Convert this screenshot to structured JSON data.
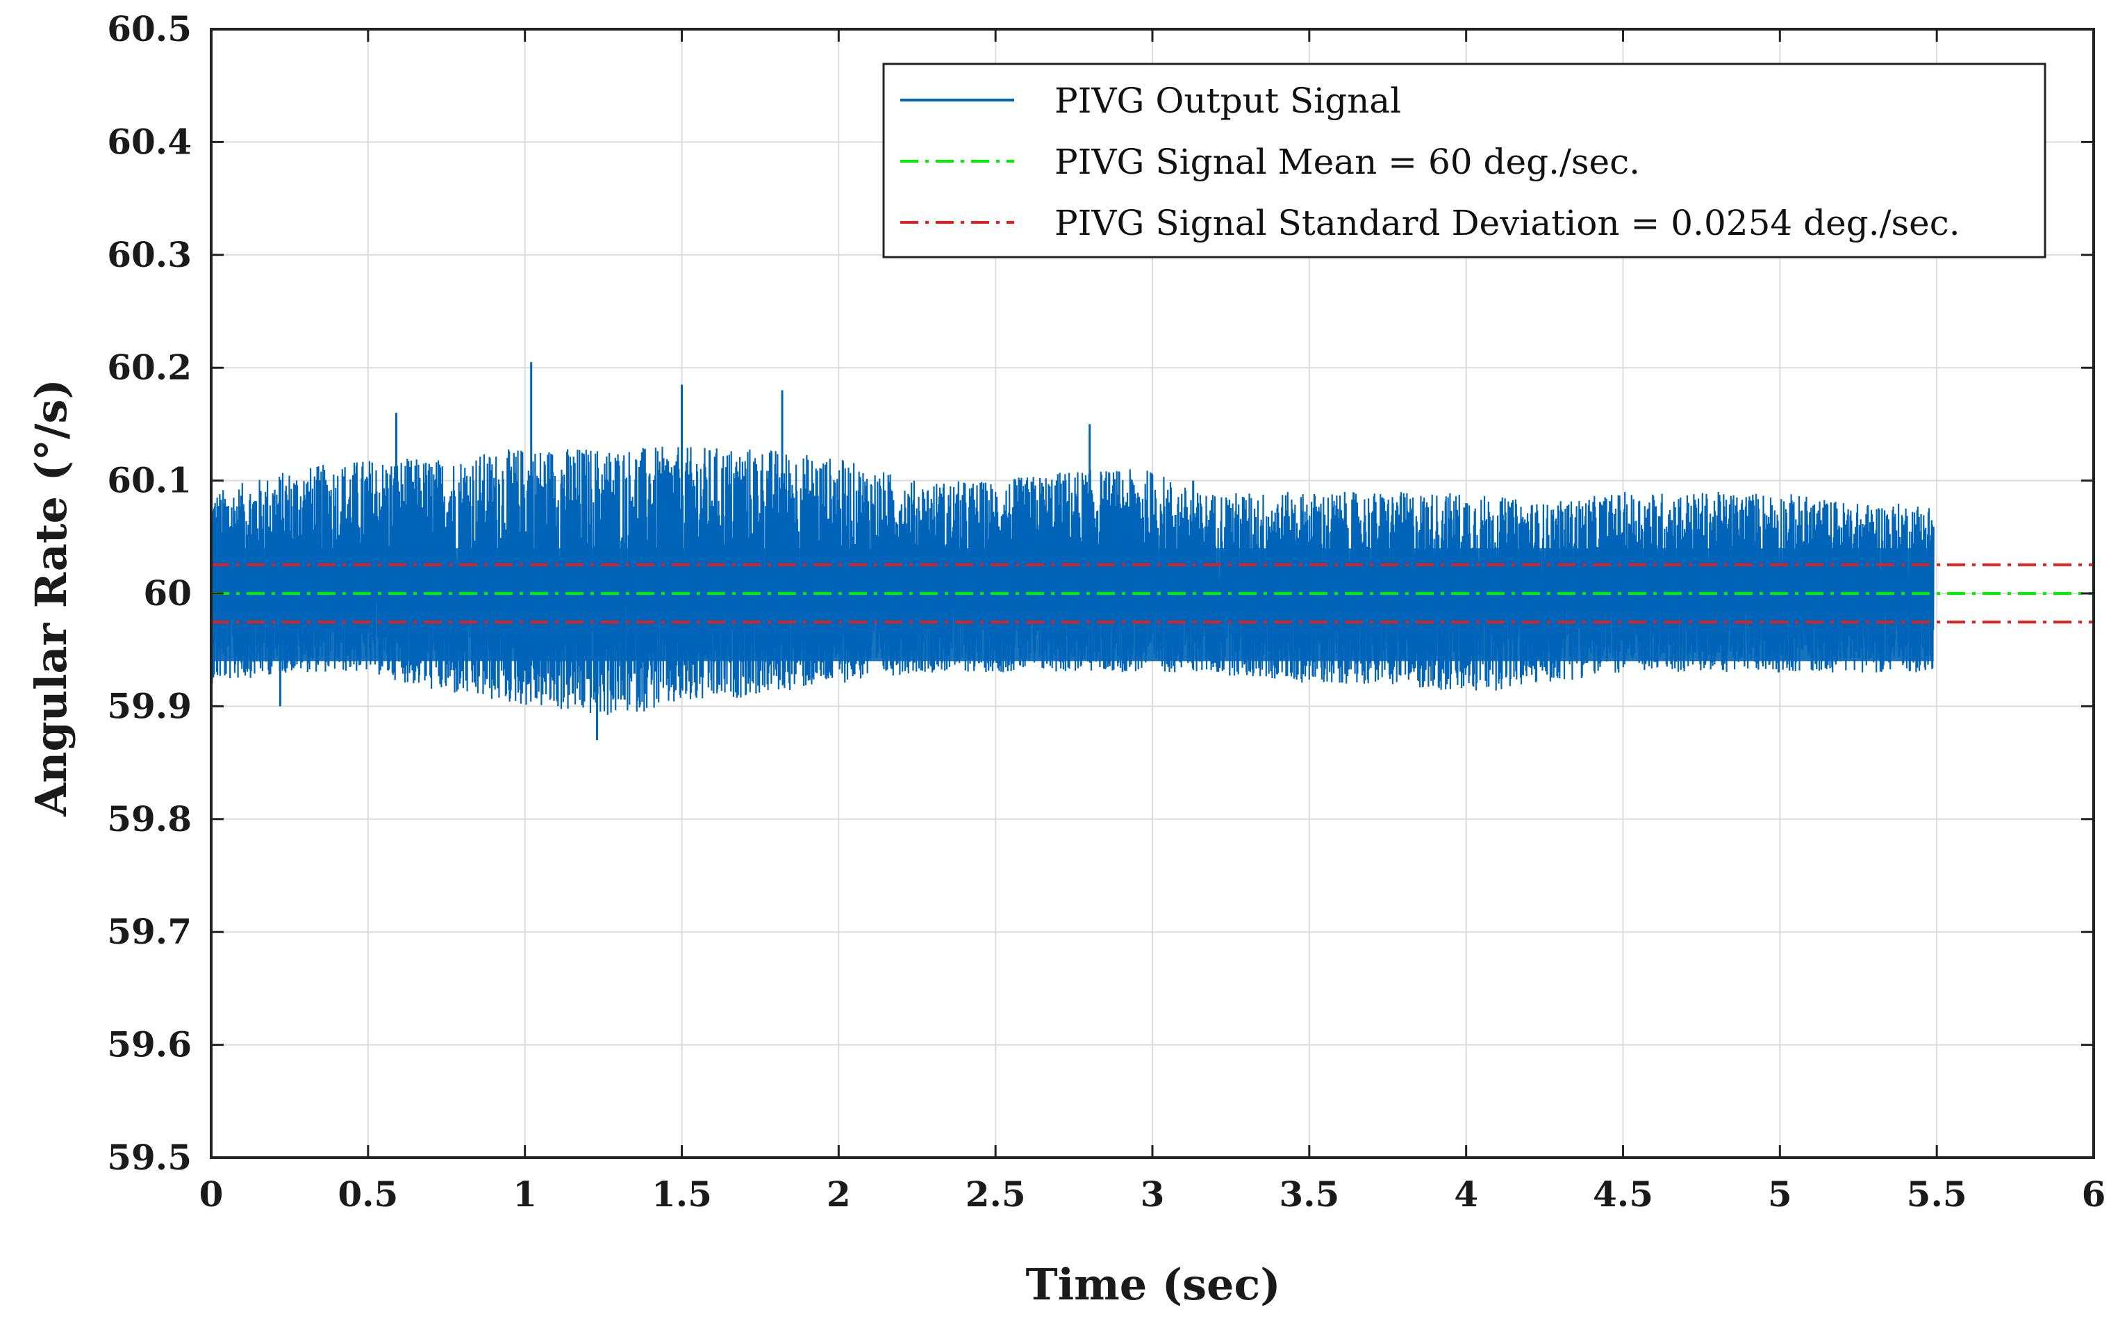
{
  "chart_data": {
    "type": "line",
    "title": "",
    "xlabel": "Time (sec)",
    "ylabel": "Angular Rate (°/s)",
    "xlim": [
      0,
      6
    ],
    "ylim": [
      59.5,
      60.5
    ],
    "x_ticks": [
      0,
      0.5,
      1,
      1.5,
      2,
      2.5,
      3,
      3.5,
      4,
      4.5,
      5,
      5.5,
      6
    ],
    "x_tick_labels": [
      "0",
      "0.5",
      "1",
      "1.5",
      "2",
      "2.5",
      "3",
      "3.5",
      "4",
      "4.5",
      "5",
      "5.5",
      "6"
    ],
    "y_ticks": [
      59.5,
      59.6,
      59.7,
      59.8,
      59.9,
      60,
      60.1,
      60.2,
      60.3,
      60.4,
      60.5
    ],
    "y_tick_labels": [
      "59.5",
      "59.6",
      "59.7",
      "59.8",
      "59.9",
      "60",
      "60.1",
      "60.2",
      "60.3",
      "60.4",
      "60.5"
    ],
    "grid": true,
    "legend_position": "top-right",
    "series": [
      {
        "name": "PIVG Output Signal",
        "style": "solid",
        "color": "#0065b8",
        "x_range": [
          0,
          5.49
        ],
        "mean": 60,
        "std_dev": 0.0254,
        "peak_points": [
          {
            "x": 1.02,
            "y": 60.205
          },
          {
            "x": 1.5,
            "y": 60.185
          },
          {
            "x": 1.82,
            "y": 60.18
          },
          {
            "x": 0.59,
            "y": 60.16
          },
          {
            "x": 2.8,
            "y": 60.15
          },
          {
            "x": 1.23,
            "y": 59.87
          },
          {
            "x": 0.22,
            "y": 59.9
          },
          {
            "x": 3.13,
            "y": 60.1
          }
        ],
        "envelope": [
          {
            "x": 0.0,
            "upper": 60.09,
            "lower": 59.92
          },
          {
            "x": 0.25,
            "upper": 60.11,
            "lower": 59.93
          },
          {
            "x": 0.5,
            "upper": 60.12,
            "lower": 59.93
          },
          {
            "x": 0.75,
            "upper": 60.12,
            "lower": 59.91
          },
          {
            "x": 1.0,
            "upper": 60.13,
            "lower": 59.9
          },
          {
            "x": 1.25,
            "upper": 60.13,
            "lower": 59.89
          },
          {
            "x": 1.5,
            "upper": 60.13,
            "lower": 59.9
          },
          {
            "x": 1.75,
            "upper": 60.13,
            "lower": 59.91
          },
          {
            "x": 2.0,
            "upper": 60.12,
            "lower": 59.92
          },
          {
            "x": 2.25,
            "upper": 60.1,
            "lower": 59.93
          },
          {
            "x": 2.5,
            "upper": 60.1,
            "lower": 59.93
          },
          {
            "x": 2.75,
            "upper": 60.11,
            "lower": 59.93
          },
          {
            "x": 3.0,
            "upper": 60.11,
            "lower": 59.93
          },
          {
            "x": 3.14,
            "upper": 60.09,
            "lower": 59.93
          },
          {
            "x": 3.5,
            "upper": 60.09,
            "lower": 59.92
          },
          {
            "x": 3.75,
            "upper": 60.09,
            "lower": 59.92
          },
          {
            "x": 4.0,
            "upper": 60.09,
            "lower": 59.91
          },
          {
            "x": 4.25,
            "upper": 60.08,
            "lower": 59.92
          },
          {
            "x": 4.5,
            "upper": 60.09,
            "lower": 59.93
          },
          {
            "x": 4.75,
            "upper": 60.09,
            "lower": 59.93
          },
          {
            "x": 5.0,
            "upper": 60.09,
            "lower": 59.93
          },
          {
            "x": 5.25,
            "upper": 60.08,
            "lower": 59.93
          },
          {
            "x": 5.49,
            "upper": 60.08,
            "lower": 59.93
          }
        ]
      },
      {
        "name": "PIVG Signal Mean = 60 deg./sec.",
        "style": "dashdot",
        "color": "#00ee00",
        "x": [
          0,
          6
        ],
        "y": [
          60,
          60
        ]
      },
      {
        "name": "PIVG Signal Standard Deviation = 0.0254 deg./sec.",
        "style": "dashdot",
        "color": "#e02020",
        "x": [
          0,
          6
        ],
        "y": [
          60.0254,
          60.0254
        ],
        "lower_y": [
          59.9746,
          59.9746
        ]
      }
    ]
  }
}
